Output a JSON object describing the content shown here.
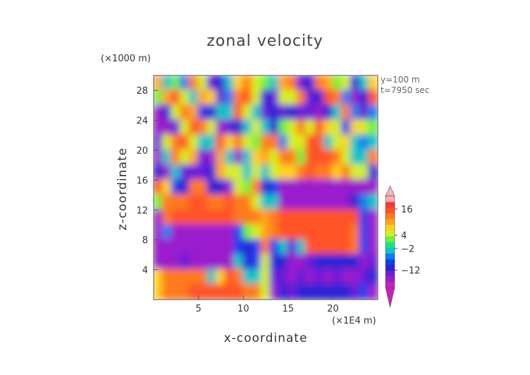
{
  "chart_data": {
    "type": "heatmap",
    "title": "zonal velocity",
    "xlabel": "x-coordinate",
    "ylabel": "z-coordinate",
    "x_scale_label": "(×1E4 m)",
    "z_scale_label": "(×1000 m)",
    "annotations": [
      "y=100 m",
      "t=7950 sec"
    ],
    "xlim": [
      0,
      25
    ],
    "ylim": [
      0,
      30
    ],
    "x_ticks": [
      5,
      10,
      15,
      20
    ],
    "y_ticks": [
      4,
      8,
      12,
      16,
      20,
      24,
      28
    ],
    "colorbar": {
      "labels": [
        "16",
        "4",
        "−2",
        "−12"
      ],
      "label_values": [
        16,
        4,
        -2,
        -12
      ],
      "range": [
        -20,
        22
      ],
      "extend": "both",
      "colors": [
        "#cc1fbf",
        "#9a1fcc",
        "#6a1fd9",
        "#2b22d6",
        "#0a40f0",
        "#0a7ff0",
        "#0fc4c8",
        "#14e68c",
        "#6ef03c",
        "#d6f01e",
        "#ffd21a",
        "#ffa61a",
        "#ff7a1f",
        "#ff5228",
        "#f03a3a",
        "#ffb0b8"
      ]
    },
    "z_grid": [
      [
        10,
        -2,
        2,
        -6,
        12,
        6,
        -14,
        -10,
        -2,
        8,
        14,
        6,
        2,
        -4,
        10,
        14,
        -14,
        -12,
        14,
        10,
        2,
        4,
        -10,
        -4,
        8
      ],
      [
        2,
        10,
        16,
        6,
        -4,
        10,
        8,
        -14,
        -6,
        12,
        16,
        4,
        -12,
        -14,
        6,
        6,
        12,
        -14,
        -12,
        16,
        12,
        -6,
        -16,
        -12,
        16
      ],
      [
        -16,
        -12,
        4,
        14,
        10,
        -8,
        -12,
        -4,
        -2,
        16,
        4,
        -2,
        -14,
        -12,
        -14,
        -12,
        -14,
        -14,
        -16,
        -12,
        -2,
        12,
        -6,
        -14,
        -6
      ],
      [
        -16,
        -16,
        -14,
        4,
        16,
        12,
        4,
        -16,
        -14,
        -10,
        -4,
        4,
        -4,
        -10,
        2,
        4,
        14,
        6,
        16,
        8,
        6,
        -8,
        8,
        6,
        2
      ],
      [
        -14,
        4,
        14,
        16,
        4,
        -2,
        -4,
        16,
        8,
        12,
        4,
        2,
        12,
        14,
        -6,
        6,
        4,
        16,
        16,
        -4,
        4,
        8,
        -4,
        -6,
        -4
      ],
      [
        -16,
        -4,
        12,
        4,
        10,
        -14,
        -16,
        10,
        -4,
        -16,
        -2,
        8,
        10,
        6,
        12,
        12,
        2,
        16,
        16,
        16,
        12,
        4,
        -4,
        -4,
        14
      ],
      [
        -12,
        -16,
        -4,
        -14,
        -14,
        -14,
        -12,
        10,
        4,
        6,
        -2,
        4,
        -2,
        6,
        8,
        8,
        12,
        16,
        14,
        12,
        8,
        12,
        4,
        4,
        -12
      ],
      [
        16,
        8,
        -8,
        -10,
        12,
        12,
        -12,
        -12,
        -16,
        6,
        2,
        14,
        -10,
        -8,
        -16,
        -16,
        -16,
        -16,
        -16,
        -16,
        -16,
        -16,
        -16,
        -16,
        -16
      ],
      [
        2,
        14,
        12,
        14,
        16,
        16,
        14,
        12,
        16,
        14,
        12,
        4,
        -4,
        -4,
        -16,
        -16,
        -16,
        -16,
        -16,
        -16,
        -16,
        -16,
        -12,
        -6,
        -4
      ],
      [
        -16,
        14,
        16,
        16,
        16,
        16,
        16,
        16,
        16,
        14,
        12,
        12,
        10,
        12,
        16,
        16,
        16,
        16,
        16,
        16,
        16,
        16,
        16,
        -8,
        -16
      ],
      [
        -16,
        -6,
        -16,
        -16,
        -16,
        -16,
        -16,
        -16,
        -16,
        -8,
        2,
        6,
        10,
        12,
        16,
        16,
        16,
        16,
        16,
        16,
        16,
        16,
        14,
        -8,
        -16
      ],
      [
        -16,
        -16,
        -16,
        -16,
        -16,
        -16,
        -16,
        -16,
        -16,
        -8,
        -12,
        -8,
        14,
        -8,
        -4,
        -14,
        -4,
        16,
        16,
        16,
        16,
        16,
        12,
        -8,
        -16
      ],
      [
        -16,
        -16,
        -16,
        -14,
        -16,
        -16,
        -16,
        -16,
        -16,
        -4,
        -12,
        -8,
        4,
        -10,
        -12,
        -16,
        -16,
        -14,
        -12,
        -12,
        -12,
        -12,
        -12,
        -16,
        -14
      ],
      [
        8,
        12,
        12,
        12,
        12,
        12,
        -4,
        8,
        16,
        14,
        -4,
        -4,
        4,
        -14,
        -14,
        -16,
        -14,
        -16,
        -14,
        -16,
        -14,
        -16,
        -16,
        -14,
        -10
      ],
      [
        8,
        12,
        12,
        12,
        16,
        16,
        16,
        16,
        16,
        16,
        12,
        12,
        6,
        -16,
        -12,
        -14,
        -10,
        -12,
        -12,
        -12,
        -12,
        -12,
        -14,
        -8,
        -16
      ]
    ]
  }
}
